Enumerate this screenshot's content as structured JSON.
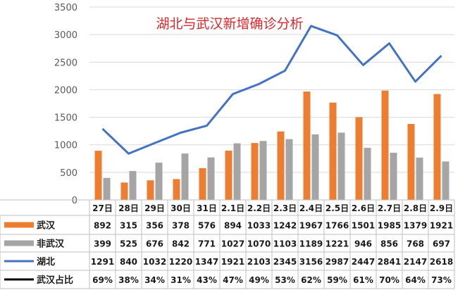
{
  "chart_data": {
    "type": "bar",
    "title": "湖北与武汉新增确诊分析",
    "categories": [
      "27日",
      "28日",
      "29日",
      "30日",
      "31日",
      "2.1日",
      "2.2日",
      "2.3日",
      "2.4日",
      "2.5日",
      "2.6日",
      "2.7日",
      "2.8日",
      "2.9日"
    ],
    "ylim": [
      0,
      3500
    ],
    "yticks": [
      0,
      500,
      1000,
      1500,
      2000,
      2500,
      3000,
      3500
    ],
    "grid": true,
    "series": [
      {
        "name": "武汉",
        "kind": "bar",
        "color": "#ed7d31",
        "values": [
          892,
          315,
          356,
          378,
          576,
          894,
          1033,
          1242,
          1967,
          1766,
          1501,
          1985,
          1379,
          1921
        ]
      },
      {
        "name": "非武汉",
        "kind": "bar",
        "color": "#a5a5a5",
        "values": [
          399,
          525,
          676,
          842,
          771,
          1027,
          1070,
          1103,
          1189,
          1221,
          946,
          856,
          768,
          697
        ]
      },
      {
        "name": "湖北",
        "kind": "line",
        "color": "#4472c4",
        "values": [
          1291,
          840,
          1032,
          1220,
          1347,
          1921,
          2103,
          2345,
          3156,
          2987,
          2447,
          2841,
          2147,
          2618
        ]
      }
    ],
    "table_rows": [
      {
        "label": "武汉",
        "color": "#ed7d31",
        "marker": "bar",
        "cells": [
          "892",
          "315",
          "356",
          "378",
          "576",
          "894",
          "1033",
          "1242",
          "1967",
          "1766",
          "1501",
          "1985",
          "1379",
          "1921"
        ]
      },
      {
        "label": "非武汉",
        "color": "#a5a5a5",
        "marker": "bar",
        "cells": [
          "399",
          "525",
          "676",
          "842",
          "771",
          "1027",
          "1070",
          "1103",
          "1189",
          "1221",
          "946",
          "856",
          "768",
          "697"
        ]
      },
      {
        "label": "湖北",
        "color": "#4472c4",
        "marker": "line",
        "cells": [
          "1291",
          "840",
          "1032",
          "1220",
          "1347",
          "1921",
          "2103",
          "2345",
          "3156",
          "2987",
          "2447",
          "2841",
          "2147",
          "2618"
        ]
      },
      {
        "label": "武汉占比",
        "color": "#000000",
        "marker": "line",
        "cells": [
          "69%",
          "38%",
          "34%",
          "31%",
          "43%",
          "47%",
          "49%",
          "53%",
          "62%",
          "59%",
          "61%",
          "70%",
          "64%",
          "73%"
        ]
      }
    ]
  }
}
